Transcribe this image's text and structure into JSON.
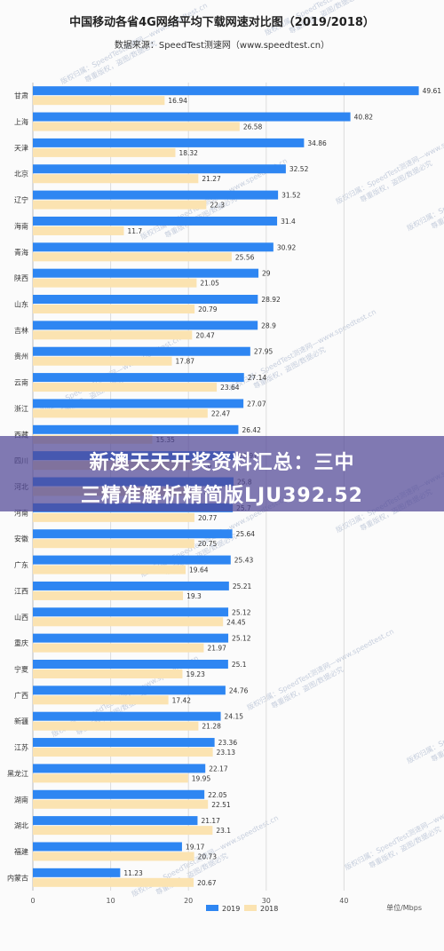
{
  "chart_data": {
    "type": "bar",
    "orientation": "horizontal",
    "title": "中国移动各省4G网络平均下载网速对比图（2019/2018）",
    "subtitle": "数据来源：SpeedTest测速网（www.speedtest.cn）",
    "xlabel": "单位/Mbps",
    "xlim": [
      0,
      50
    ],
    "xticks": [
      0,
      10,
      20,
      30,
      40
    ],
    "grid": true,
    "legend_position": "bottom-right",
    "categories": [
      "甘肃",
      "上海",
      "天津",
      "北京",
      "辽宁",
      "海南",
      "青海",
      "陕西",
      "山东",
      "吉林",
      "贵州",
      "云南",
      "浙江",
      "西藏",
      "四川",
      "河北",
      "河南",
      "安徽",
      "广东",
      "江西",
      "山西",
      "重庆",
      "宁夏",
      "广西",
      "新疆",
      "江苏",
      "黑龙江",
      "湖南",
      "湖北",
      "福建",
      "内蒙古"
    ],
    "series": [
      {
        "name": "2019",
        "color": "#2e86f2",
        "values": [
          49.61,
          40.82,
          34.86,
          32.52,
          31.52,
          31.4,
          30.92,
          29,
          28.92,
          28.9,
          27.95,
          27.14,
          27.07,
          26.42,
          25.97,
          25.8,
          25.7,
          25.64,
          25.43,
          25.21,
          25.12,
          25.12,
          25.1,
          24.76,
          24.15,
          23.36,
          22.17,
          22.05,
          21.17,
          19.17,
          11.23
        ]
      },
      {
        "name": "2018",
        "color": "#fbe3b1",
        "values": [
          16.94,
          26.58,
          18.32,
          21.27,
          22.3,
          11.7,
          25.56,
          21.05,
          20.79,
          20.47,
          17.87,
          23.64,
          22.47,
          15.35,
          20.6,
          21.5,
          20.77,
          20.75,
          19.64,
          19.3,
          24.45,
          21.97,
          19.23,
          17.42,
          21.28,
          23.13,
          19.95,
          22.51,
          23.1,
          20.73,
          20.67
        ]
      }
    ]
  },
  "watermark": {
    "lines": [
      "版权归属：SpeedTest测速网—www.speedtest.cn",
      "尊重版权，盗图/数据必究"
    ],
    "color": "#9aa9c4"
  },
  "overlay": {
    "line1": "新澳天天开奖资料汇总：三中",
    "line2": "三精准解析精简版LJU392.52",
    "color": "#5046a0"
  }
}
